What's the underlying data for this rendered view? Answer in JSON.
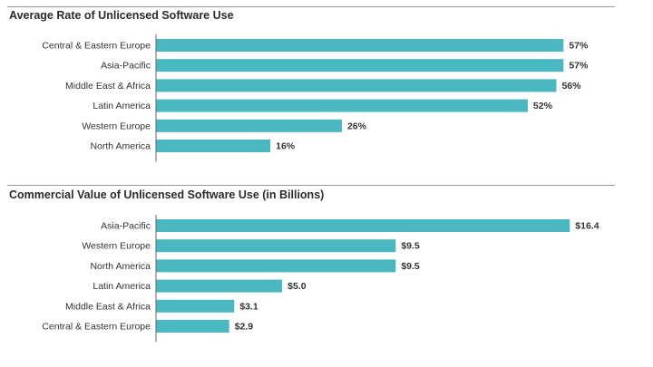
{
  "chart_data": [
    {
      "type": "bar",
      "orientation": "horizontal",
      "title": "Average Rate of Unlicensed Software Use",
      "categories": [
        "Central & Eastern Europe",
        "Asia-Pacific",
        "Middle East & Africa",
        "Latin America",
        "Western Europe",
        "North America"
      ],
      "values": [
        57,
        57,
        56,
        52,
        26,
        16
      ],
      "value_labels": [
        "57%",
        "57%",
        "56%",
        "52%",
        "26%",
        "16%"
      ],
      "unit": "%",
      "xlim": [
        0,
        60
      ],
      "bar_color": "#4ab8c1",
      "grid": false
    },
    {
      "type": "bar",
      "orientation": "horizontal",
      "title": "Commercial Value of Unlicensed Software Use (in Billions)",
      "categories": [
        "Asia-Pacific",
        "Western Europe",
        "North America",
        "Latin America",
        "Middle East & Africa",
        "Central & Eastern Europe"
      ],
      "values": [
        16.4,
        9.5,
        9.5,
        5.0,
        3.1,
        2.9
      ],
      "value_labels": [
        "$16.4",
        "$9.5",
        "$9.5",
        "$5.0",
        "$3.1",
        "$2.9"
      ],
      "unit": "$B",
      "xlim": [
        0,
        17
      ],
      "bar_color": "#4ab8c1",
      "grid": false
    }
  ]
}
